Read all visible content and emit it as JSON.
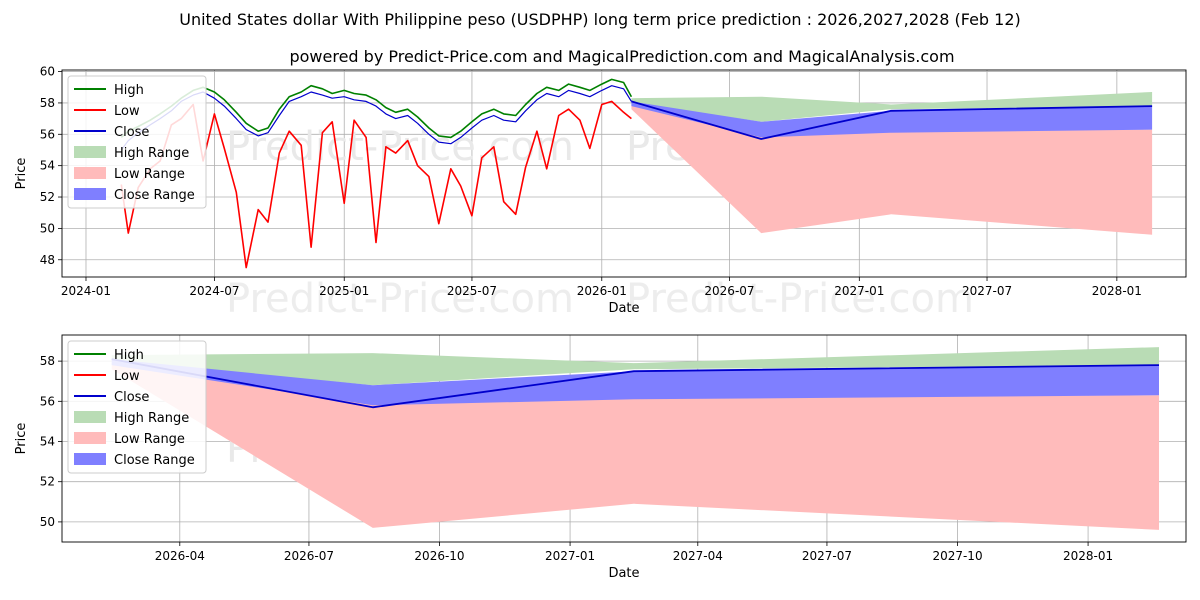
{
  "page": {
    "title": "United States dollar With Philippine peso (USDPHP) long term price prediction : 2026,2027,2028 (Feb 12)",
    "subtitle": "powered by Predict-Price.com and MagicalPrediction.com and MagicalAnalysis.com",
    "watermark": "Predict-Price.com"
  },
  "colors": {
    "high": "#008000",
    "low": "#ff0000",
    "close": "#0000cc",
    "high_range": "#b9dcb5",
    "low_range": "#ffbbbb",
    "close_range": "#7f7fff",
    "grid": "#b0b0b0"
  },
  "chart_data": [
    {
      "type": "line",
      "name": "history-and-forecast",
      "xlabel": "Date",
      "ylabel": "Price",
      "xlim": [
        "2023-11-28",
        "2028-04-08"
      ],
      "ylim": [
        46.9,
        60.1
      ],
      "x_ticks": [
        {
          "date": "2024-01-01",
          "label": "2024-01"
        },
        {
          "date": "2024-07-01",
          "label": "2024-07"
        },
        {
          "date": "2025-01-01",
          "label": "2025-01"
        },
        {
          "date": "2025-07-01",
          "label": "2025-07"
        },
        {
          "date": "2026-01-01",
          "label": "2026-01"
        },
        {
          "date": "2026-07-01",
          "label": "2026-07"
        },
        {
          "date": "2027-01-01",
          "label": "2027-01"
        },
        {
          "date": "2027-07-01",
          "label": "2027-07"
        },
        {
          "date": "2028-01-01",
          "label": "2028-01"
        }
      ],
      "y_ticks": [
        48,
        50,
        52,
        54,
        56,
        58,
        60
      ],
      "legend": [
        "High",
        "Low",
        "Close",
        "High Range",
        "Low Range",
        "Close Range"
      ],
      "legend_position": "upper-left",
      "history": {
        "dates": [
          "2024-02-20",
          "2024-03-01",
          "2024-03-15",
          "2024-04-01",
          "2024-04-15",
          "2024-05-01",
          "2024-05-15",
          "2024-06-01",
          "2024-06-15",
          "2024-07-01",
          "2024-07-15",
          "2024-08-01",
          "2024-08-15",
          "2024-09-01",
          "2024-09-15",
          "2024-10-01",
          "2024-10-15",
          "2024-11-01",
          "2024-11-15",
          "2024-12-01",
          "2024-12-15",
          "2025-01-01",
          "2025-01-15",
          "2025-02-01",
          "2025-02-15",
          "2025-03-01",
          "2025-03-15",
          "2025-04-01",
          "2025-04-15",
          "2025-05-01",
          "2025-05-15",
          "2025-06-01",
          "2025-06-15",
          "2025-07-01",
          "2025-07-15",
          "2025-08-01",
          "2025-08-15",
          "2025-09-01",
          "2025-09-15",
          "2025-10-01",
          "2025-10-15",
          "2025-11-01",
          "2025-11-15",
          "2025-12-01",
          "2025-12-15",
          "2026-01-01",
          "2026-01-15",
          "2026-02-01",
          "2026-02-12"
        ],
        "high": [
          55.8,
          56.2,
          56.5,
          56.9,
          57.3,
          57.8,
          58.3,
          58.8,
          59.0,
          58.7,
          58.2,
          57.4,
          56.7,
          56.2,
          56.4,
          57.6,
          58.4,
          58.7,
          59.1,
          58.9,
          58.6,
          58.8,
          58.6,
          58.5,
          58.2,
          57.7,
          57.4,
          57.6,
          57.1,
          56.4,
          55.9,
          55.8,
          56.2,
          56.8,
          57.3,
          57.6,
          57.3,
          57.2,
          57.9,
          58.6,
          59.0,
          58.8,
          59.2,
          59.0,
          58.8,
          59.2,
          59.5,
          59.3,
          58.4
        ],
        "low": [
          52.8,
          49.7,
          52.6,
          53.8,
          54.3,
          56.6,
          57.0,
          57.9,
          54.3,
          57.3,
          55.1,
          52.3,
          47.5,
          51.2,
          50.4,
          54.8,
          56.2,
          55.3,
          48.8,
          56.1,
          56.8,
          51.6,
          56.9,
          55.8,
          49.1,
          55.2,
          54.8,
          55.6,
          54.0,
          53.3,
          50.3,
          53.8,
          52.7,
          50.8,
          54.5,
          55.2,
          51.7,
          50.9,
          53.9,
          56.2,
          53.8,
          57.2,
          57.6,
          56.9,
          55.1,
          57.9,
          58.1,
          57.4,
          57.0
        ],
        "close": [
          55.0,
          55.6,
          56.1,
          56.6,
          57.0,
          57.5,
          58.1,
          58.5,
          58.7,
          58.3,
          57.8,
          57.0,
          56.3,
          55.9,
          56.1,
          57.2,
          58.1,
          58.4,
          58.7,
          58.5,
          58.3,
          58.4,
          58.2,
          58.1,
          57.8,
          57.3,
          57.0,
          57.2,
          56.7,
          56.0,
          55.5,
          55.4,
          55.8,
          56.4,
          56.9,
          57.2,
          56.9,
          56.8,
          57.5,
          58.2,
          58.6,
          58.4,
          58.8,
          58.6,
          58.4,
          58.8,
          59.1,
          58.9,
          58.1
        ]
      },
      "forecast": {
        "dates": [
          "2026-02-12",
          "2026-08-15",
          "2027-02-15",
          "2028-02-20"
        ],
        "high_range": {
          "upper": [
            58.3,
            58.4,
            57.9,
            58.7
          ],
          "lower": [
            58.0,
            56.8,
            57.6,
            57.8
          ]
        },
        "low_range": {
          "upper": [
            57.9,
            56.0,
            56.2,
            56.3
          ],
          "lower": [
            57.6,
            49.7,
            50.9,
            49.6
          ]
        },
        "close_range": {
          "upper": [
            58.1,
            56.8,
            57.5,
            57.8
          ],
          "lower": [
            57.8,
            55.8,
            56.1,
            56.3
          ]
        },
        "close": [
          58.1,
          55.7,
          57.5,
          57.8
        ]
      }
    },
    {
      "type": "line",
      "name": "forecast-zoom",
      "xlabel": "Date",
      "ylabel": "Price",
      "xlim": [
        "2026-01-08",
        "2028-03-10"
      ],
      "ylim": [
        49.0,
        59.3
      ],
      "x_ticks": [
        {
          "date": "2026-04-01",
          "label": "2026-04"
        },
        {
          "date": "2026-07-01",
          "label": "2026-07"
        },
        {
          "date": "2026-10-01",
          "label": "2026-10"
        },
        {
          "date": "2027-01-01",
          "label": "2027-01"
        },
        {
          "date": "2027-04-01",
          "label": "2027-04"
        },
        {
          "date": "2027-07-01",
          "label": "2027-07"
        },
        {
          "date": "2027-10-01",
          "label": "2027-10"
        },
        {
          "date": "2028-01-01",
          "label": "2028-01"
        }
      ],
      "y_ticks": [
        50,
        52,
        54,
        56,
        58
      ],
      "legend": [
        "High",
        "Low",
        "Close",
        "High Range",
        "Low Range",
        "Close Range"
      ],
      "legend_position": "upper-left",
      "forecast": {
        "dates": [
          "2026-02-12",
          "2026-08-15",
          "2027-02-15",
          "2028-02-20"
        ],
        "high_range": {
          "upper": [
            58.3,
            58.4,
            57.9,
            58.7
          ],
          "lower": [
            58.0,
            56.8,
            57.6,
            57.8
          ]
        },
        "low_range": {
          "upper": [
            57.9,
            56.0,
            56.2,
            56.3
          ],
          "lower": [
            57.6,
            49.7,
            50.9,
            49.6
          ]
        },
        "close_range": {
          "upper": [
            58.1,
            56.8,
            57.5,
            57.8
          ],
          "lower": [
            57.8,
            55.8,
            56.1,
            56.3
          ]
        },
        "close": [
          58.1,
          55.7,
          57.5,
          57.8
        ]
      }
    }
  ]
}
